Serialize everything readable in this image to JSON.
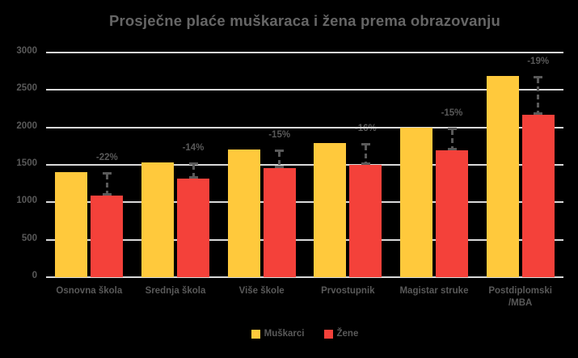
{
  "title": "Prosječne plaće muškaraca i žena prema obrazovanju",
  "colors": {
    "background": "#000000",
    "men": "#FFC93C",
    "women": "#F4413A",
    "grid": "#D9D9D9",
    "text": "#595959",
    "title": "#666666",
    "annotation": "#595959"
  },
  "chart_data": {
    "type": "bar",
    "title": "Prosječne plaće muškaraca i žena prema obrazovanju",
    "categories": [
      "Osnovna škola",
      "Srednja škola",
      "Više škole",
      "Prvostupnik",
      "Magistar struke",
      "Postdiplomski /MBA"
    ],
    "series": [
      {
        "name": "Muškarci",
        "color_key": "men",
        "values": [
          1400,
          1530,
          1700,
          1790,
          2000,
          2690
        ]
      },
      {
        "name": "Žene",
        "color_key": "women",
        "values": [
          1090,
          1320,
          1460,
          1500,
          1690,
          2170
        ]
      }
    ],
    "diff_labels": [
      "-22%",
      "-14%",
      "-15%",
      "-16%",
      "-15%",
      "-19%"
    ],
    "y_axis": {
      "min": 0,
      "max": 3000,
      "step": 500,
      "ticks": [
        "0",
        "500",
        "1000",
        "1500",
        "2000",
        "2500",
        "3000"
      ]
    },
    "grid": true,
    "legend": [
      "Muškarci",
      "Žene"
    ],
    "legend_position": "bottom"
  }
}
